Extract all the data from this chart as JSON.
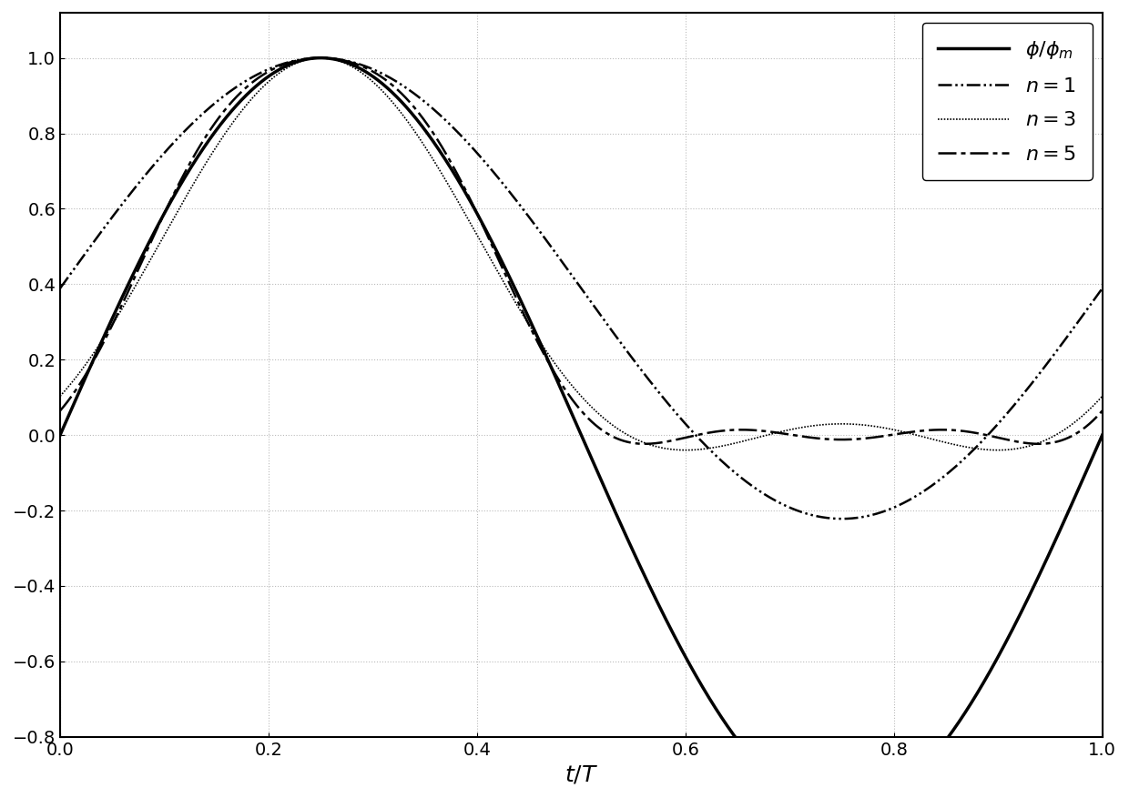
{
  "title": "",
  "xlabel": "$t/T$",
  "ylabel": "",
  "xlim": [
    0,
    1
  ],
  "ylim": [
    -0.8,
    1.12
  ],
  "yticks": [
    -0.8,
    -0.6,
    -0.4,
    -0.2,
    0.0,
    0.2,
    0.4,
    0.6,
    0.8,
    1.0
  ],
  "xticks": [
    0,
    0.2,
    0.4,
    0.6,
    0.8,
    1.0
  ],
  "grid_color": "#aaaaaa",
  "background_color": "#ffffff",
  "line_color": "#000000",
  "legend_labels": [
    "$\\phi/\\phi_m$",
    "$n=1$",
    "$n=3$",
    "$n=5$"
  ],
  "n_points": 5000,
  "alpha": 0.45
}
